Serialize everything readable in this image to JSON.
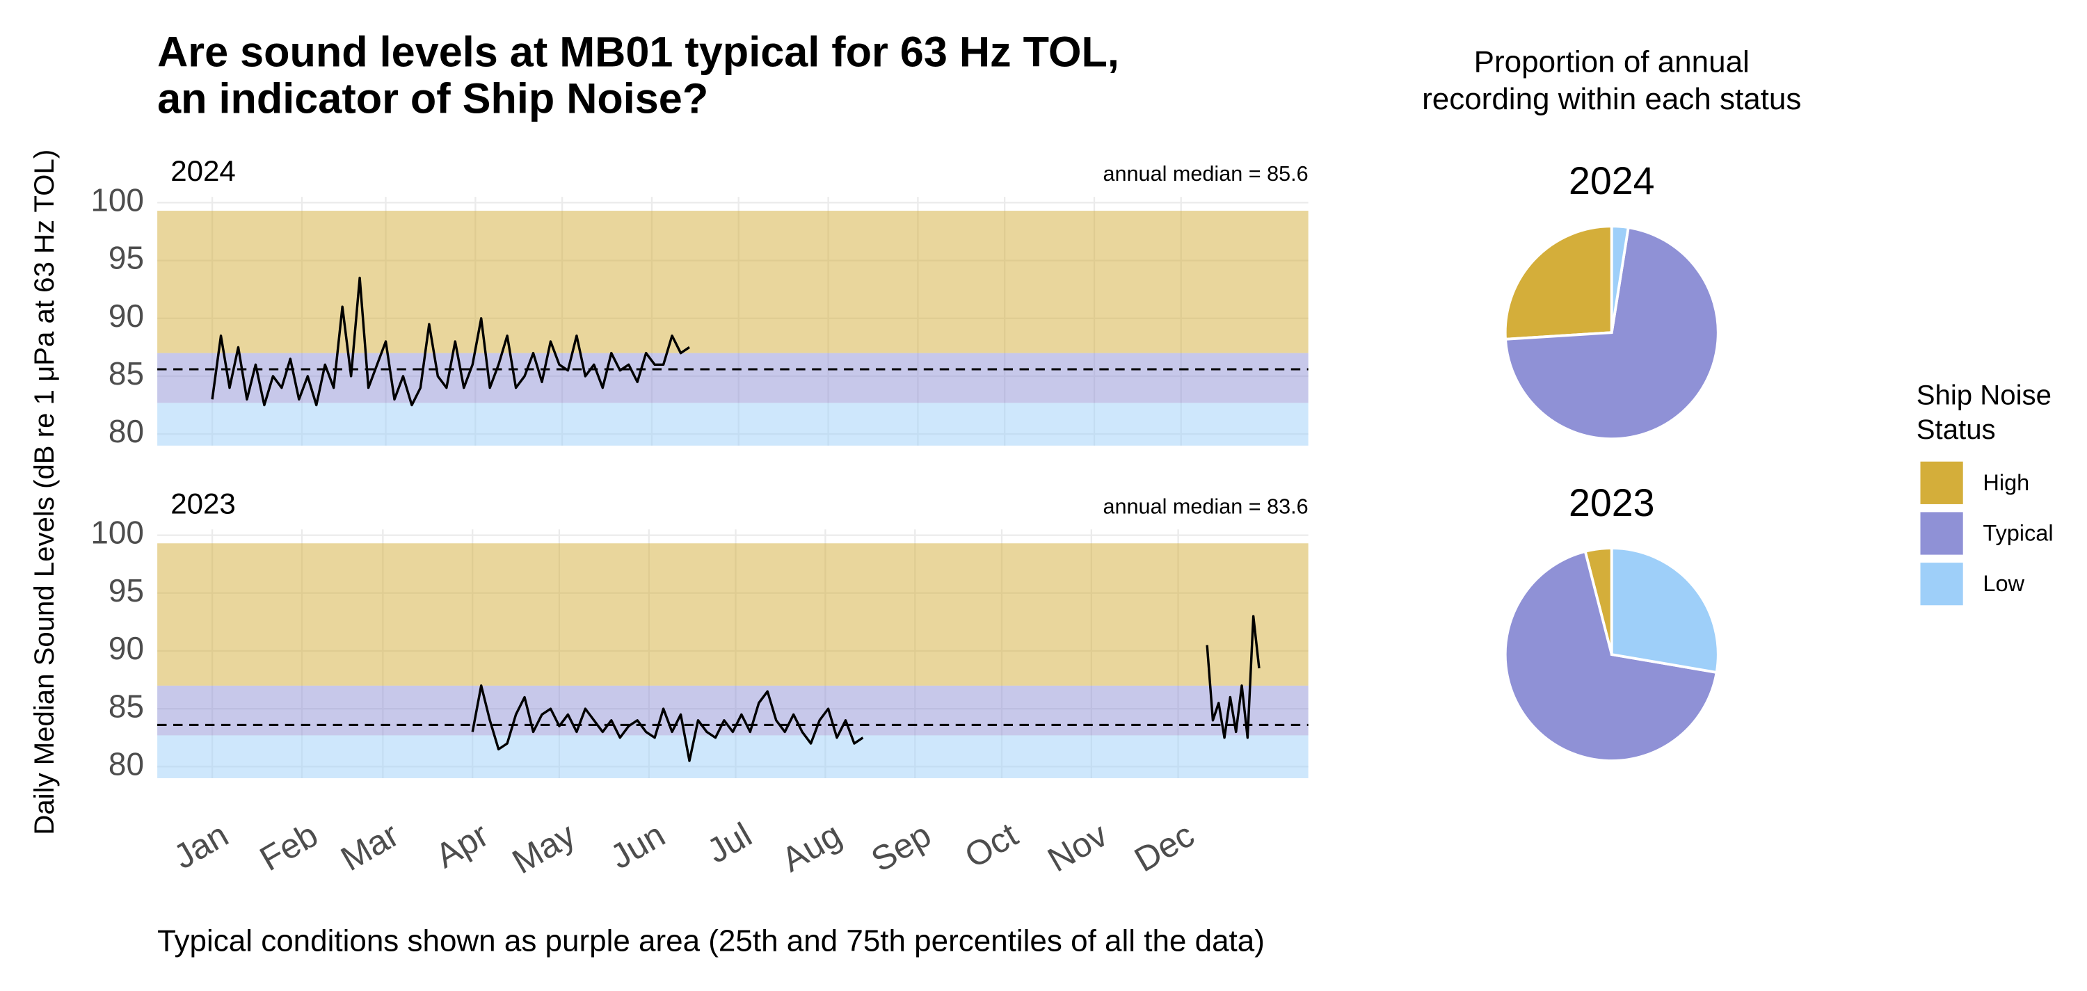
{
  "title": [
    "Are sound levels at MB01 typical for 63 Hz TOL,",
    "an indicator of Ship Noise?"
  ],
  "y_label": "Daily Median Sound Levels (dB re 1 μPa at 63 Hz TOL)",
  "caption": "Typical conditions shown as purple area (25th and 75th percentiles of all the data)",
  "pie_heading": [
    "Proportion of annual",
    "recording within each status"
  ],
  "legend_title": [
    "Ship Noise",
    "Status"
  ],
  "chart_data": [
    {
      "type": "line",
      "title": "2024",
      "median": 85.6,
      "median_label": "annual median = 85.6",
      "xlim": [
        -19,
        379
      ],
      "xticks": [
        0,
        31,
        60,
        91,
        121,
        152,
        182,
        213,
        244,
        274,
        305,
        335
      ],
      "ylim": [
        79,
        100.5
      ],
      "yticks": [
        80,
        85,
        90,
        95,
        100
      ],
      "grid": true,
      "color": "#000000",
      "bands": [
        {
          "from": 79,
          "to": 82.7,
          "color": "#9ecff9"
        },
        {
          "from": 82.7,
          "to": 87,
          "color": "#8f91d6"
        },
        {
          "from": 87,
          "to": 99.3,
          "color": "#d4ae3a"
        }
      ],
      "x": [
        0,
        3,
        6,
        9,
        12,
        15,
        18,
        21,
        24,
        27,
        30,
        33,
        36,
        39,
        42,
        45,
        48,
        51,
        54,
        57,
        60,
        63,
        66,
        69,
        72,
        75,
        78,
        81,
        84,
        87,
        90,
        93,
        96,
        99,
        102,
        105,
        108,
        111,
        114,
        117,
        120,
        123,
        126,
        129,
        132,
        135,
        138,
        141,
        144,
        147,
        150,
        153,
        156,
        159,
        162,
        165
      ],
      "values": [
        83,
        88.5,
        84,
        87.5,
        83,
        86,
        82.5,
        85,
        84,
        86.5,
        83,
        85,
        82.5,
        86,
        84,
        91,
        85,
        93.5,
        84,
        86,
        88,
        83,
        85,
        82.5,
        84,
        89.5,
        85,
        84,
        88,
        84,
        86,
        90,
        84,
        86,
        88.5,
        84,
        85,
        87,
        84.5,
        88,
        86,
        85.5,
        88.5,
        85,
        86,
        84,
        87,
        85.5,
        86,
        84.5,
        87,
        86,
        86,
        88.5,
        87,
        87.5
      ]
    },
    {
      "type": "line",
      "title": "2023",
      "median": 83.6,
      "median_label": "annual median = 83.6",
      "xlim": [
        -19,
        379
      ],
      "xticks": [
        {
          "value": 0,
          "label": "Jan"
        },
        {
          "value": 31,
          "label": "Feb"
        },
        {
          "value": 59,
          "label": "Mar"
        },
        {
          "value": 90,
          "label": "Apr"
        },
        {
          "value": 120,
          "label": "May"
        },
        {
          "value": 151,
          "label": "Jun"
        },
        {
          "value": 181,
          "label": "Jul"
        },
        {
          "value": 212,
          "label": "Aug"
        },
        {
          "value": 243,
          "label": "Sep"
        },
        {
          "value": 273,
          "label": "Oct"
        },
        {
          "value": 304,
          "label": "Nov"
        },
        {
          "value": 334,
          "label": "Dec"
        }
      ],
      "ylim": [
        79,
        100.5
      ],
      "yticks": [
        80,
        85,
        90,
        95,
        100
      ],
      "grid": true,
      "color": "#000000",
      "bands": [
        {
          "from": 79,
          "to": 82.7,
          "color": "#9ecff9"
        },
        {
          "from": 82.7,
          "to": 87,
          "color": "#8f91d6"
        },
        {
          "from": 87,
          "to": 99.3,
          "color": "#d4ae3a"
        }
      ],
      "x": [
        90,
        93,
        96,
        99,
        102,
        105,
        108,
        111,
        114,
        117,
        120,
        123,
        126,
        129,
        132,
        135,
        138,
        141,
        144,
        147,
        150,
        153,
        156,
        159,
        162,
        165,
        168,
        171,
        174,
        177,
        180,
        183,
        186,
        189,
        192,
        195,
        198,
        201,
        204,
        207,
        210,
        213,
        216,
        219,
        222,
        225,
        300,
        344,
        346,
        348,
        350,
        352,
        354,
        356,
        358,
        360,
        362
      ],
      "values": [
        83,
        87,
        84,
        81.5,
        82,
        84.5,
        86,
        83,
        84.5,
        85,
        83.5,
        84.5,
        83,
        85,
        84,
        83,
        84,
        82.5,
        83.5,
        84,
        83,
        82.5,
        85,
        83,
        84.5,
        80.5,
        84,
        83,
        82.5,
        84,
        83,
        84.5,
        83,
        85.5,
        86.5,
        84,
        83,
        84.5,
        83,
        82,
        84,
        85,
        82.5,
        84,
        82,
        82.5,
        null,
        90.5,
        84,
        85.5,
        82.5,
        86,
        83,
        87,
        82.5,
        93,
        88.5
      ]
    },
    {
      "type": "pie",
      "title": "2024",
      "categories": [
        "High",
        "Typical",
        "Low"
      ],
      "values": [
        26,
        71.5,
        2.5
      ],
      "colors": [
        "#d4ae3a",
        "#8f91d6",
        "#9ecff9"
      ]
    },
    {
      "type": "pie",
      "title": "2023",
      "categories": [
        "High",
        "Typical",
        "Low"
      ],
      "values": [
        4,
        68.3,
        27.7
      ],
      "colors": [
        "#d4ae3a",
        "#8f91d6",
        "#9ecff9"
      ]
    }
  ]
}
